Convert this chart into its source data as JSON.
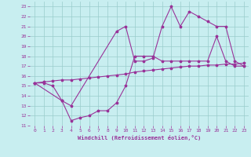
{
  "xlabel": "Windchill (Refroidissement éolien,°C)",
  "bg_color": "#c8eef0",
  "line_color": "#993399",
  "grid_color": "#99cccc",
  "xlim": [
    -0.5,
    23.5
  ],
  "ylim": [
    11,
    23.5
  ],
  "yticks": [
    11,
    12,
    13,
    14,
    15,
    16,
    17,
    18,
    19,
    20,
    21,
    22,
    23
  ],
  "xticks": [
    0,
    1,
    2,
    3,
    4,
    5,
    6,
    7,
    8,
    9,
    10,
    11,
    12,
    13,
    14,
    15,
    16,
    17,
    18,
    19,
    20,
    21,
    22,
    23
  ],
  "line1_x": [
    0,
    1,
    2,
    3,
    4,
    5,
    6,
    7,
    8,
    9,
    10,
    11,
    12,
    13,
    14,
    15,
    16,
    17,
    18,
    19,
    20,
    21,
    22,
    23
  ],
  "line1_y": [
    15.3,
    15.4,
    15.5,
    15.6,
    15.6,
    15.7,
    15.8,
    15.9,
    16.0,
    16.1,
    16.2,
    16.4,
    16.5,
    16.6,
    16.7,
    16.8,
    16.9,
    17.0,
    17.0,
    17.1,
    17.1,
    17.2,
    17.2,
    17.3
  ],
  "line2_x": [
    0,
    1,
    2,
    3,
    4,
    5,
    6,
    7,
    8,
    9,
    10,
    11,
    12,
    13,
    14,
    15,
    16,
    17,
    18,
    19,
    20,
    21,
    22,
    23
  ],
  "line2_y": [
    15.3,
    15.3,
    15.0,
    13.5,
    11.5,
    11.8,
    12.0,
    12.5,
    12.5,
    13.3,
    15.0,
    18.0,
    18.0,
    18.0,
    17.5,
    17.5,
    17.5,
    17.5,
    17.5,
    17.5,
    20.0,
    17.5,
    17.0,
    17.0
  ],
  "line3_x": [
    0,
    3,
    4,
    9,
    10,
    11,
    12,
    13,
    14,
    15,
    16,
    17,
    18,
    19,
    20,
    21,
    22,
    23
  ],
  "line3_y": [
    15.3,
    13.5,
    13.0,
    20.5,
    21.0,
    17.5,
    17.5,
    17.8,
    21.0,
    23.0,
    21.0,
    22.5,
    22.0,
    21.5,
    21.0,
    21.0,
    17.5,
    17.0
  ]
}
